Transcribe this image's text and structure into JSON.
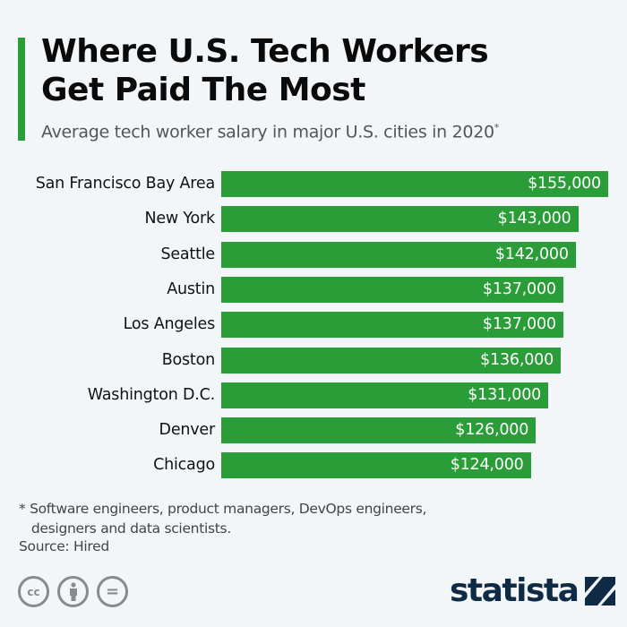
{
  "title_line1": "Where U.S. Tech Workers",
  "title_line2": "Get Paid The Most",
  "subtitle": "Average tech worker salary in major U.S. cities in 2020",
  "subtitle_mark": "*",
  "footnote": "* Software engineers, product managers, DevOps engineers,\n   designers and data scientists.",
  "source": "Source: Hired",
  "license_icons": [
    "cc-icon",
    "attribution-icon",
    "no-derivatives-icon"
  ],
  "license_labels": {
    "cc": "cc",
    "nd": "="
  },
  "logo": "statista",
  "colors": {
    "bar": "#2a9c38",
    "accent": "#2a9c38",
    "logo": "#0f2a45",
    "background": "#f3f6f9"
  },
  "chart_data": {
    "type": "bar",
    "orientation": "horizontal",
    "categories": [
      "San Francisco Bay Area",
      "New York",
      "Seattle",
      "Austin",
      "Los Angeles",
      "Boston",
      "Washington D.C.",
      "Denver",
      "Chicago"
    ],
    "values": [
      155000,
      143000,
      142000,
      137000,
      137000,
      136000,
      131000,
      126000,
      124000
    ],
    "value_labels": [
      "$155,000",
      "$143,000",
      "$142,000",
      "$137,000",
      "$137,000",
      "$136,000",
      "$131,000",
      "$126,000",
      "$124,000"
    ],
    "xlim": [
      0,
      155000
    ],
    "grid": false,
    "legend": "none"
  }
}
